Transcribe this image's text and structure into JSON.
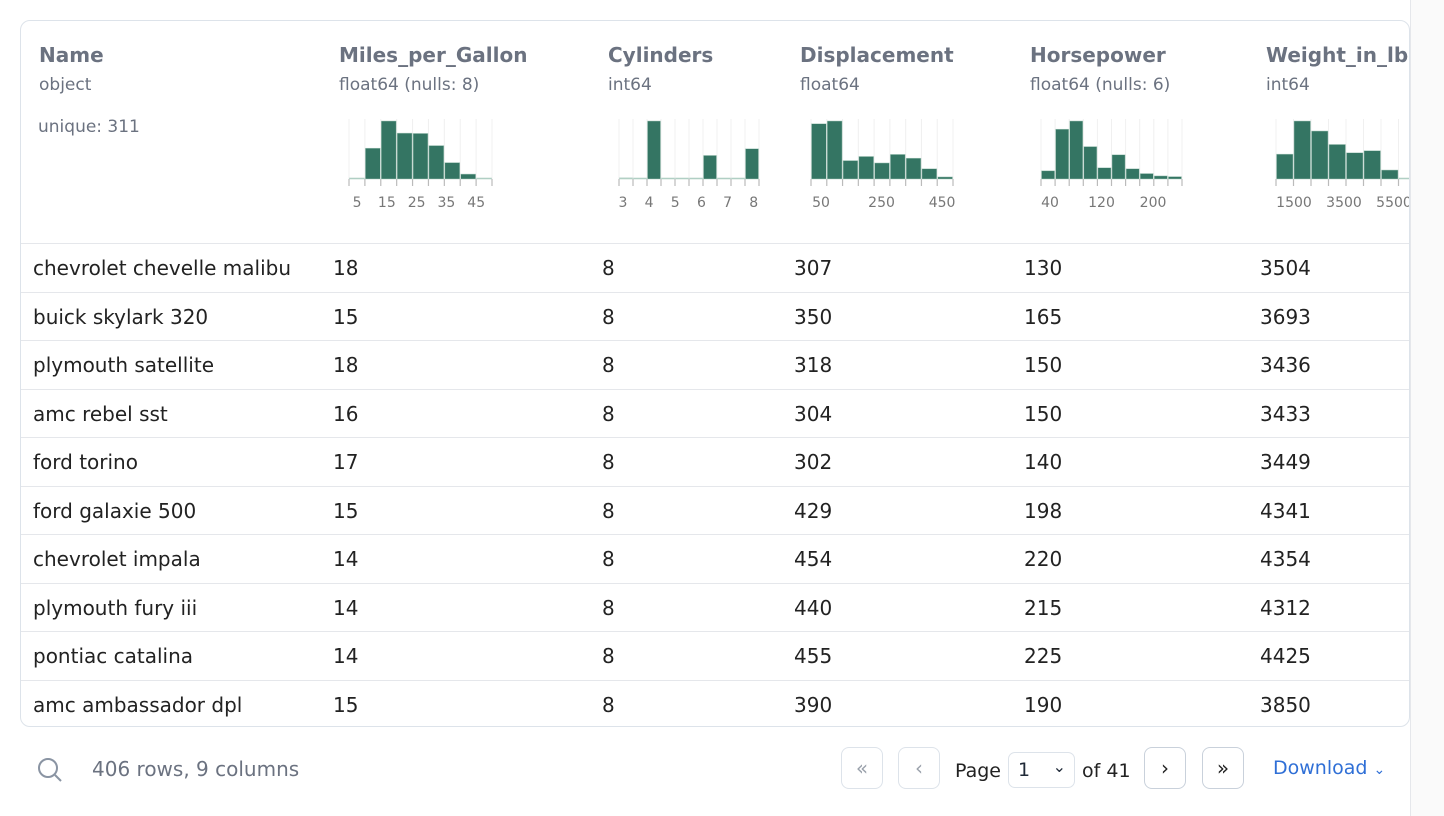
{
  "columns": [
    {
      "name": "Name",
      "dtype": "object",
      "unique": "unique: 311"
    },
    {
      "name": "Miles_per_Gallon",
      "dtype": "float64",
      "nulls": "(nulls: 8)"
    },
    {
      "name": "Cylinders",
      "dtype": "int64"
    },
    {
      "name": "Displacement",
      "dtype": "float64"
    },
    {
      "name": "Horsepower",
      "dtype": "float64",
      "nulls": "(nulls: 6)"
    },
    {
      "name": "Weight_in_lbs",
      "dtype": "int64"
    }
  ],
  "chart_data": [
    {
      "type": "bar",
      "column": "Miles_per_Gallon",
      "values": [
        2,
        94,
        177,
        140,
        139,
        102,
        50,
        15,
        2
      ],
      "xlim": [
        2.3,
        50.3
      ],
      "tick_labels": [
        "5",
        "15",
        "25",
        "35",
        "45"
      ],
      "ticks": [
        5,
        15,
        25,
        35,
        45
      ],
      "color": "#347563"
    },
    {
      "type": "bar",
      "column": "Cylinders",
      "values": [
        4,
        0,
        207,
        0,
        3,
        0,
        84,
        0,
        0,
        108
      ],
      "xlim": [
        2.85,
        8.2
      ],
      "tick_labels": [
        "3",
        "4",
        "5",
        "6",
        "7",
        "8"
      ],
      "ticks": [
        3,
        4,
        5,
        6,
        7,
        8
      ],
      "color": "#347563"
    },
    {
      "type": "bar",
      "column": "Displacement",
      "values": [
        162,
        170,
        54,
        66,
        47,
        72,
        61,
        30,
        6
      ],
      "xlim": [
        17,
        486
      ],
      "tick_labels": [
        "50",
        "250",
        "450"
      ],
      "ticks": [
        50,
        250,
        450
      ],
      "color": "#347563"
    },
    {
      "type": "bar",
      "column": "Horsepower",
      "values": [
        24,
        146,
        170,
        95,
        33,
        71,
        30,
        16,
        9,
        7
      ],
      "xlim": [
        26,
        245
      ],
      "tick_labels": [
        "40",
        "120",
        "200"
      ],
      "ticks": [
        40,
        120,
        200
      ],
      "color": "#347563"
    },
    {
      "type": "bar",
      "column": "Weight_in_lbs",
      "values": [
        72,
        168,
        139,
        100,
        76,
        82,
        26,
        2
      ],
      "xlim": [
        780,
        6380
      ],
      "tick_labels": [
        "1500",
        "3500",
        "5500"
      ],
      "ticks": [
        1500,
        3500,
        5500
      ],
      "color": "#347563"
    }
  ],
  "rows": [
    [
      "chevrolet chevelle malibu",
      "18",
      "8",
      "307",
      "130",
      "3504"
    ],
    [
      "buick skylark 320",
      "15",
      "8",
      "350",
      "165",
      "3693"
    ],
    [
      "plymouth satellite",
      "18",
      "8",
      "318",
      "150",
      "3436"
    ],
    [
      "amc rebel sst",
      "16",
      "8",
      "304",
      "150",
      "3433"
    ],
    [
      "ford torino",
      "17",
      "8",
      "302",
      "140",
      "3449"
    ],
    [
      "ford galaxie 500",
      "15",
      "8",
      "429",
      "198",
      "4341"
    ],
    [
      "chevrolet impala",
      "14",
      "8",
      "454",
      "220",
      "4354"
    ],
    [
      "plymouth fury iii",
      "14",
      "8",
      "440",
      "215",
      "4312"
    ],
    [
      "pontiac catalina",
      "14",
      "8",
      "455",
      "225",
      "4425"
    ],
    [
      "amc ambassador dpl",
      "15",
      "8",
      "390",
      "190",
      "3850"
    ]
  ],
  "footer": {
    "summary": "406 rows, 9 columns",
    "page_label": "Page",
    "page_value": "1",
    "of_label": "of 41",
    "download": "Download"
  },
  "accent": "#2f6fd6"
}
